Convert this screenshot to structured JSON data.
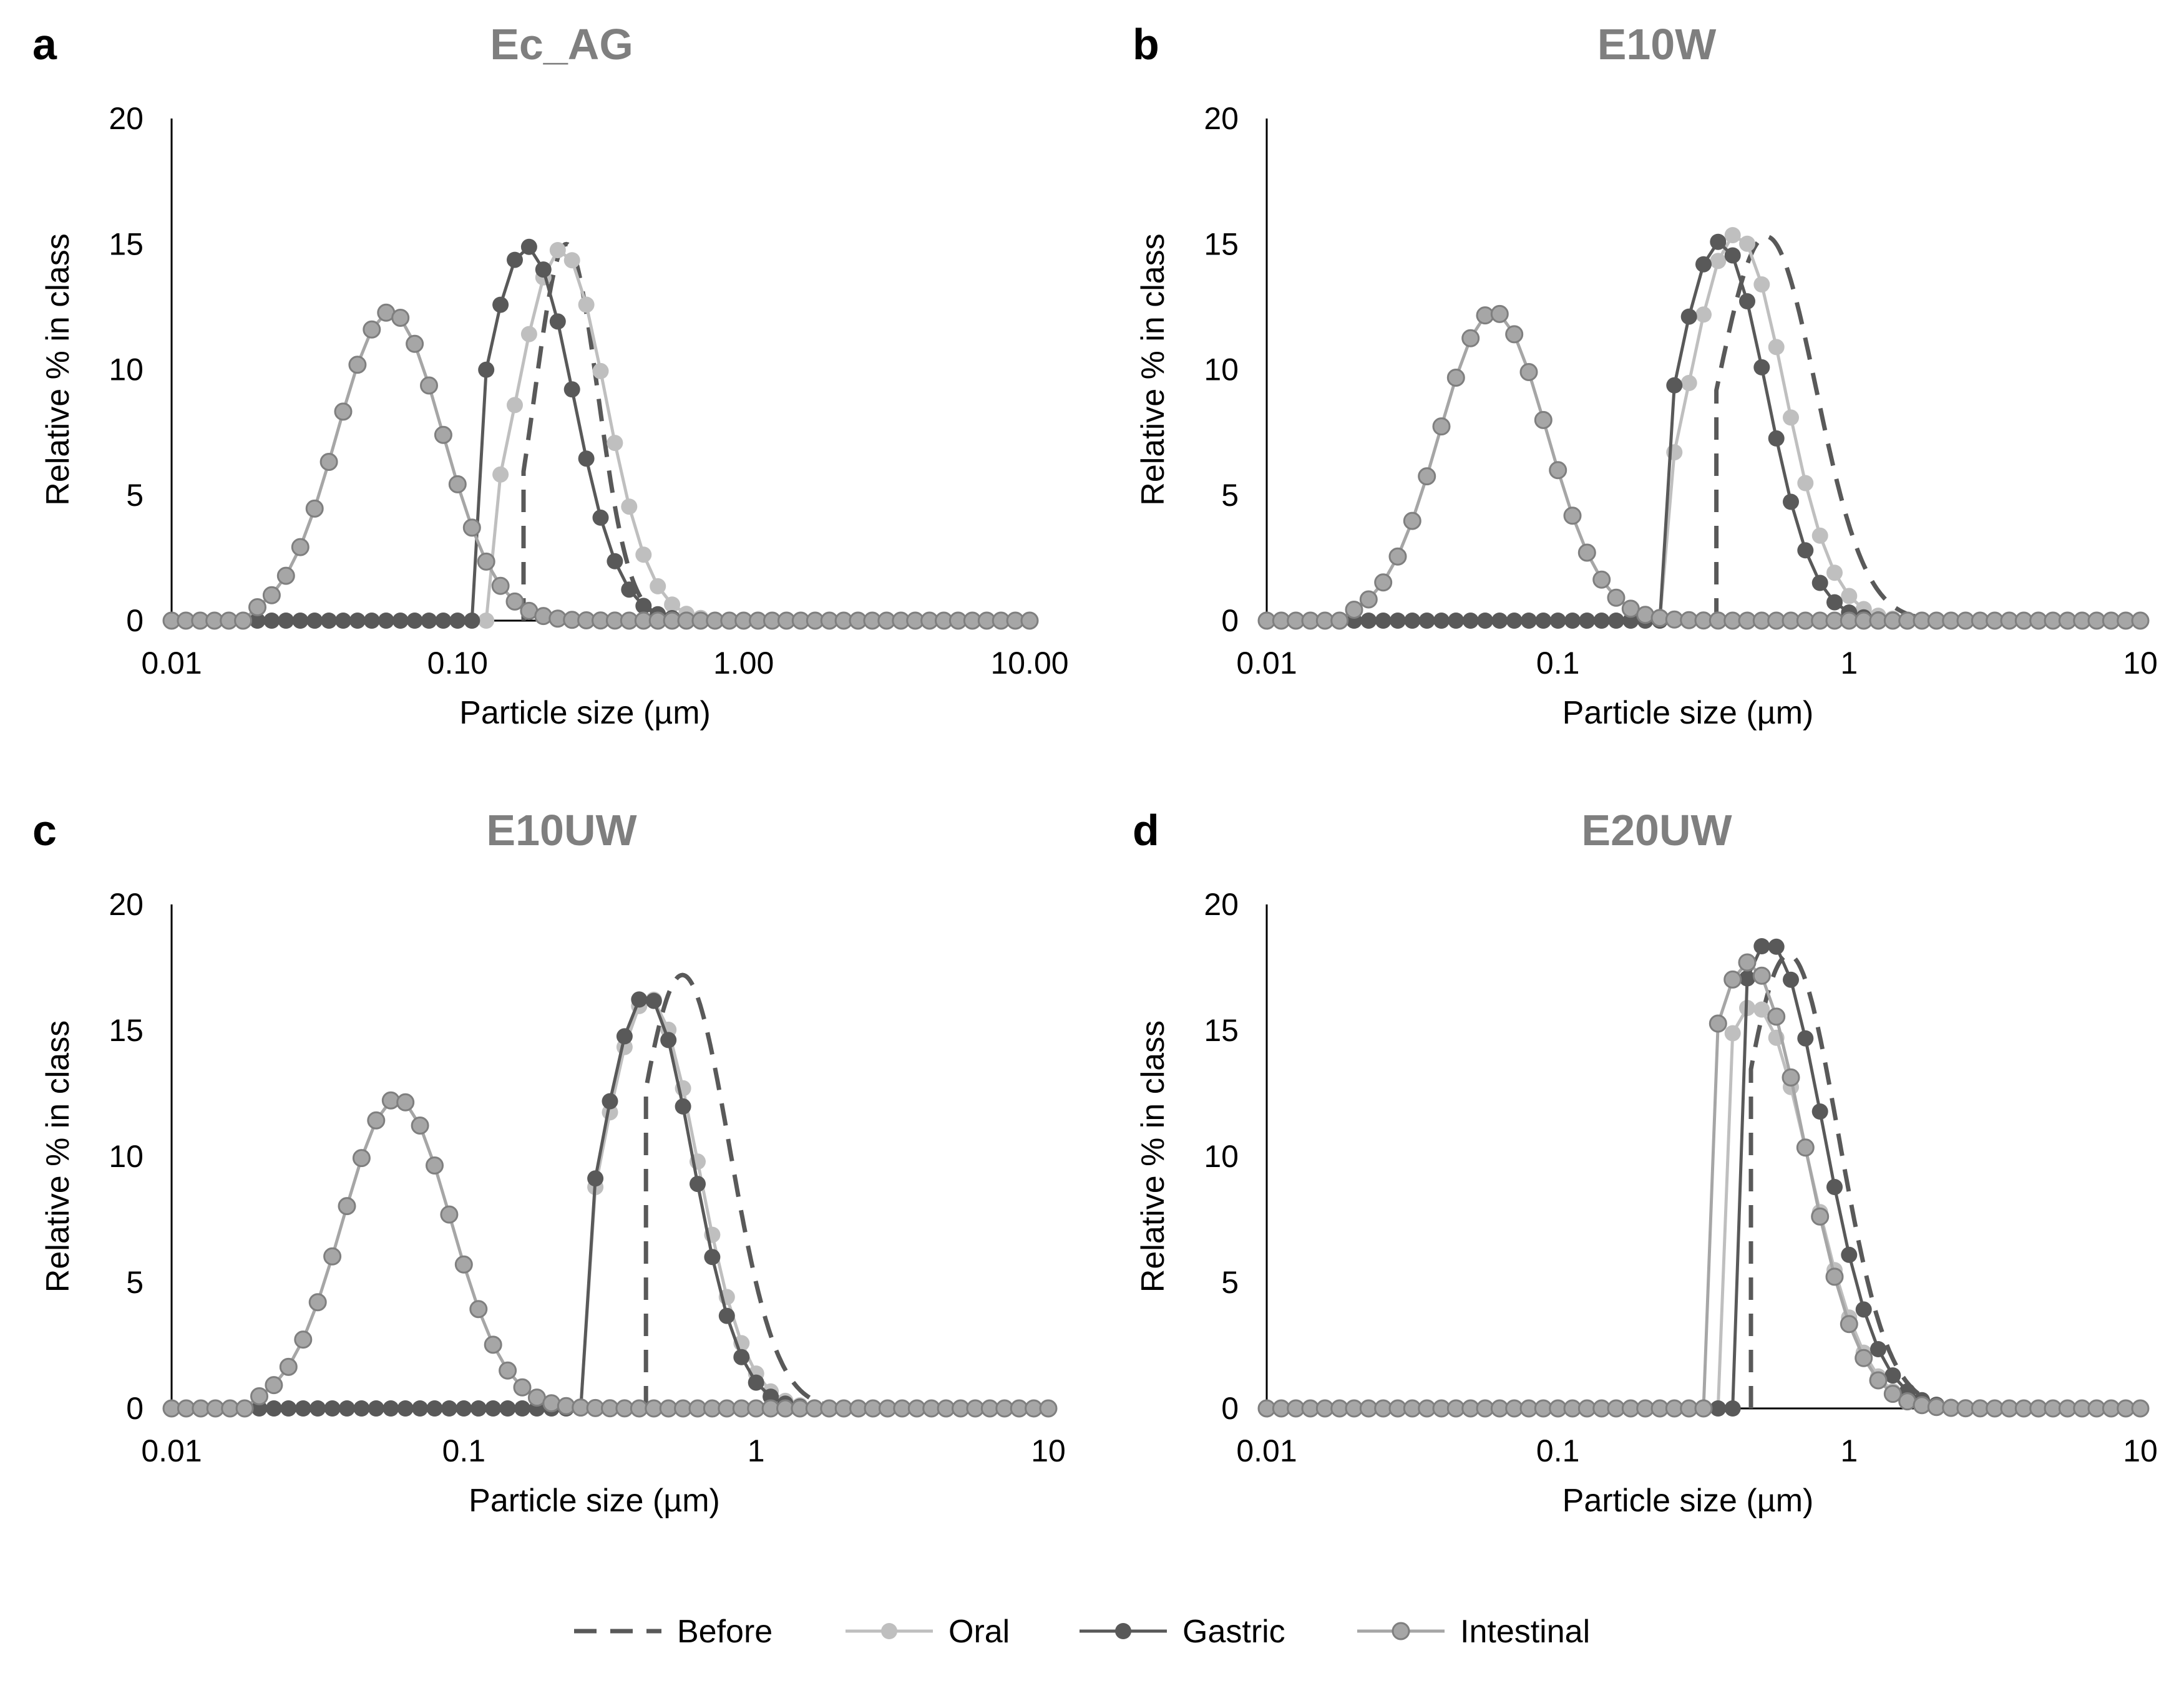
{
  "figure": {
    "legend": [
      {
        "name": "Before",
        "label": "Before"
      },
      {
        "name": "Oral",
        "label": "Oral"
      },
      {
        "name": "Gastric",
        "label": "Gastric"
      },
      {
        "name": "Intestinal",
        "label": "Intestinal"
      }
    ],
    "series_style": {
      "Before": {
        "color": "#595959",
        "line": "dashed",
        "marker": "none"
      },
      "Oral": {
        "color": "#bfbfbf",
        "line": "solid",
        "marker": "filled-circle"
      },
      "Gastric": {
        "color": "#595959",
        "line": "solid",
        "marker": "filled-circle"
      },
      "Intestinal": {
        "color": "#a6a6a6",
        "line": "solid",
        "marker": "outlined-circle",
        "marker_edge": "#7f7f7f"
      }
    }
  },
  "chart_data": [
    {
      "type": "line",
      "panel": "a",
      "title": "Ec_AG",
      "xlabel": "Particle size (µm)",
      "ylabel": "Relative % in class",
      "xscale": "log",
      "xlim": [
        0.01,
        10
      ],
      "ylim": [
        0,
        20
      ],
      "xticks": [
        0.01,
        0.1,
        1,
        10
      ],
      "xtick_labels": [
        "0.01",
        "0.10",
        "1.00",
        "10.00"
      ],
      "yticks": [
        0,
        5,
        10,
        15,
        20
      ],
      "ytick_labels": [
        "0",
        "5",
        "10",
        "15",
        "20"
      ],
      "series": [
        {
          "name": "Before",
          "peak_x": 0.24,
          "peak_y": 15.0,
          "sigma": 0.11,
          "min_x": 0.17
        },
        {
          "name": "Oral",
          "peak_x": 0.23,
          "peak_y": 14.8,
          "sigma": 0.155,
          "min_x": 0.13
        },
        {
          "name": "Gastric",
          "peak_x": 0.175,
          "peak_y": 14.9,
          "sigma": 0.16,
          "min_x": 0.115
        },
        {
          "name": "Intestinal",
          "peak_x": 0.058,
          "peak_y": 12.3,
          "sigma": 0.185,
          "min_x": 0.018
        }
      ]
    },
    {
      "type": "line",
      "panel": "b",
      "title": "E10W",
      "xlabel": "Particle size (µm)",
      "ylabel": "Relative % in class",
      "xscale": "log",
      "xlim": [
        0.01,
        10
      ],
      "ylim": [
        0,
        20
      ],
      "xticks": [
        0.01,
        0.1,
        1,
        10
      ],
      "xtick_labels": [
        "0.01",
        "0.1",
        "1",
        "10"
      ],
      "yticks": [
        0,
        5,
        10,
        15,
        20
      ],
      "ytick_labels": [
        "0",
        "5",
        "10",
        "15",
        "20"
      ],
      "series": [
        {
          "name": "Before",
          "peak_x": 0.52,
          "peak_y": 15.3,
          "sigma": 0.17,
          "min_x": 0.35
        },
        {
          "name": "Oral",
          "peak_x": 0.41,
          "peak_y": 15.4,
          "sigma": 0.165,
          "min_x": 0.24
        },
        {
          "name": "Gastric",
          "peak_x": 0.36,
          "peak_y": 15.1,
          "sigma": 0.16,
          "min_x": 0.23
        },
        {
          "name": "Intestinal",
          "peak_x": 0.06,
          "peak_y": 12.3,
          "sigma": 0.185,
          "min_x": 0.018
        }
      ]
    },
    {
      "type": "line",
      "panel": "c",
      "title": "E10UW",
      "xlabel": "Particle size (µm)",
      "ylabel": "Relative % in class",
      "xscale": "log",
      "xlim": [
        0.01,
        10
      ],
      "ylim": [
        0,
        20
      ],
      "xticks": [
        0.01,
        0.1,
        1,
        10
      ],
      "xtick_labels": [
        "0.01",
        "0.1",
        "1",
        "10"
      ],
      "yticks": [
        0,
        5,
        10,
        15,
        20
      ],
      "ytick_labels": [
        "0",
        "5",
        "10",
        "15",
        "20"
      ],
      "series": [
        {
          "name": "Before",
          "peak_x": 0.56,
          "peak_y": 17.2,
          "sigma": 0.16,
          "min_x": 0.42
        },
        {
          "name": "Oral",
          "peak_x": 0.43,
          "peak_y": 16.3,
          "sigma": 0.165,
          "min_x": 0.28
        },
        {
          "name": "Gastric",
          "peak_x": 0.42,
          "peak_y": 16.4,
          "sigma": 0.16,
          "min_x": 0.26
        },
        {
          "name": "Intestinal",
          "peak_x": 0.059,
          "peak_y": 12.3,
          "sigma": 0.185,
          "min_x": 0.018
        }
      ]
    },
    {
      "type": "line",
      "panel": "d",
      "title": "E20UW",
      "xlabel": "Particle size (µm)",
      "ylabel": "Relative % in class",
      "xscale": "log",
      "xlim": [
        0.01,
        10
      ],
      "ylim": [
        0,
        20
      ],
      "xticks": [
        0.01,
        0.1,
        1,
        10
      ],
      "xtick_labels": [
        "0.01",
        "0.1",
        "1",
        "10"
      ],
      "yticks": [
        0,
        5,
        10,
        15,
        20
      ],
      "ytick_labels": [
        "0",
        "5",
        "10",
        "15",
        "20"
      ],
      "series": [
        {
          "name": "Before",
          "peak_x": 0.62,
          "peak_y": 18.0,
          "sigma": 0.17,
          "min_x": 0.46
        },
        {
          "name": "Oral",
          "peak_x": 0.47,
          "peak_y": 16.0,
          "sigma": 0.19,
          "min_x": 0.36
        },
        {
          "name": "Gastric",
          "peak_x": 0.53,
          "peak_y": 18.5,
          "sigma": 0.185,
          "min_x": 0.43
        },
        {
          "name": "Intestinal",
          "peak_x": 0.45,
          "peak_y": 17.7,
          "sigma": 0.19,
          "min_x": 0.35
        }
      ]
    }
  ]
}
